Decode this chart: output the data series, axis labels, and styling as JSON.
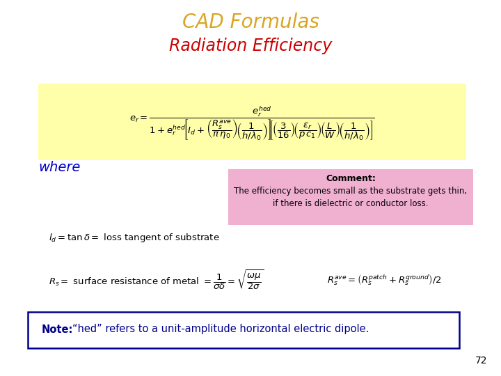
{
  "title": "CAD Formulas",
  "title_color": "#DAA520",
  "subtitle": "Radiation Efficiency",
  "subtitle_color": "#CC0000",
  "bg_color": "#FFFFFF",
  "formula_bg": "#FFFFAA",
  "comment_bg": "#F0B0D0",
  "note_bg": "#FFFFFF",
  "note_border": "#00008B",
  "where_color": "#0000CC",
  "page_number": "72",
  "comment_title": "Comment:",
  "comment_text": "The efficiency becomes small as the substrate gets thin,\nif there is dielectric or conductor loss.",
  "note_bold": "Note:",
  "note_text": "“hed” refers to a unit-amplitude horizontal electric dipole.",
  "title_fontsize": 20,
  "subtitle_fontsize": 17,
  "formula_fontsize": 9.5,
  "where_fontsize": 14,
  "sub_formula_fontsize": 9.5,
  "note_fontsize": 10.5
}
